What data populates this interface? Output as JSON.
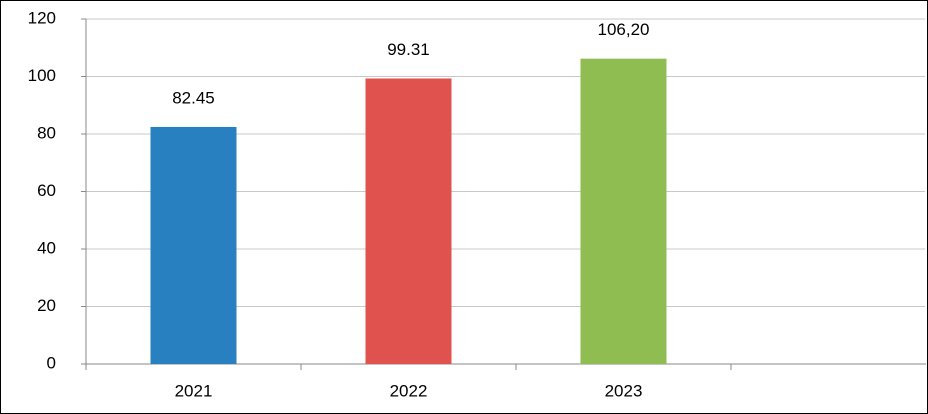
{
  "chart_data": {
    "type": "bar",
    "categories": [
      "2021",
      "2022",
      "2023",
      null
    ],
    "values": [
      82.45,
      99.31,
      106.2,
      null
    ],
    "value_labels": [
      "82.45",
      "99.31",
      "106,20",
      null
    ],
    "colors": [
      "#2980c1",
      "#df524e",
      "#8fbd52",
      null
    ],
    "ylim": [
      0,
      120
    ],
    "yticks": [
      0,
      20,
      40,
      60,
      80,
      100,
      120
    ],
    "grid": true
  }
}
